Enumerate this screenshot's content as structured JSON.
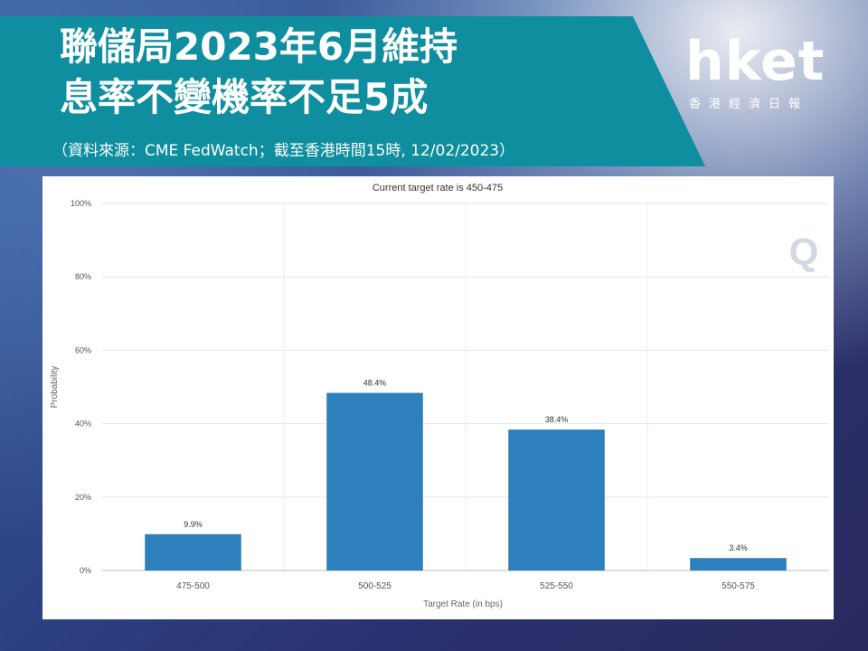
{
  "header": {
    "title_line1": "聯儲局2023年6月維持",
    "title_line2": "息率不變機率不足5成",
    "source": "（資料來源：CME FedWatch；截至香港時間15時, 12/02/2023）"
  },
  "brand": {
    "logo": "hket",
    "tagline": "香港經濟日報"
  },
  "chart_data": {
    "type": "bar",
    "title": "Current target rate is 450-475",
    "xlabel": "Target Rate (in bps)",
    "ylabel": "Probability",
    "categories": [
      "475-500",
      "500-525",
      "525-550",
      "550-575"
    ],
    "values": [
      9.9,
      48.4,
      38.4,
      3.4
    ],
    "data_labels": [
      "9.9%",
      "48.4%",
      "38.4%",
      "3.4%"
    ],
    "yticks": [
      "0%",
      "20%",
      "40%",
      "60%",
      "80%",
      "100%"
    ],
    "ylim": [
      0,
      100
    ],
    "bar_color": "#2e80bd",
    "grid": true,
    "watermark": "Q"
  }
}
